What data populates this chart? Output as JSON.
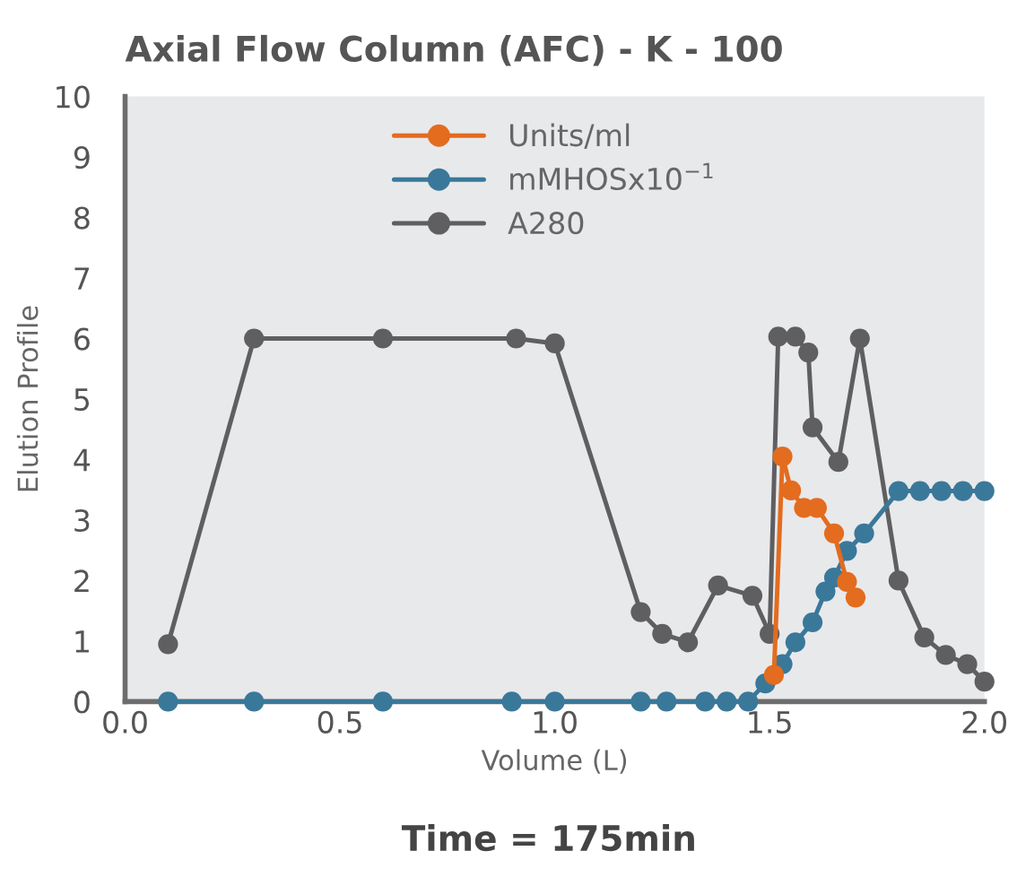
{
  "chart_data": {
    "type": "line",
    "title": "Axial Flow Column (AFC) - K - 100",
    "xlabel": "Volume (L)",
    "ylabel": "Elution Profile",
    "annotations": [
      "Time = 175min"
    ],
    "xlim": [
      0,
      2.0
    ],
    "xticks": [
      {
        "value": 0,
        "label": "0.0"
      },
      {
        "value": 0.5,
        "label": "0.5"
      },
      {
        "value": 1.0,
        "label": "1.0"
      },
      {
        "value": 1.5,
        "label": "1.5"
      },
      {
        "value": 2.0,
        "label": "2.0"
      }
    ],
    "ylim": [
      0,
      10
    ],
    "yticks": [
      0,
      1,
      2,
      3,
      4,
      5,
      6,
      7,
      8,
      9,
      10
    ],
    "grid": false,
    "legend": "top",
    "marker": "circle",
    "line_style": "solid",
    "series": [
      {
        "name": "Units/ml",
        "color": "#e36c1f",
        "x": [
          1.51,
          1.53,
          1.55,
          1.58,
          1.61,
          1.65,
          1.68,
          1.7
        ],
        "values": [
          0.44,
          4.05,
          3.49,
          3.2,
          3.2,
          2.78,
          1.98,
          1.72
        ]
      },
      {
        "name": "mMHOSx10$^{−1}$",
        "color": "#3a789a",
        "x": [
          0.1,
          0.3,
          0.6,
          0.9,
          1.0,
          1.2,
          1.26,
          1.35,
          1.4,
          1.45,
          1.49,
          1.53,
          1.56,
          1.6,
          1.63,
          1.65,
          1.68,
          1.72,
          1.8,
          1.85,
          1.9,
          1.95,
          2.0
        ],
        "values": [
          0,
          0,
          0,
          0,
          0,
          0,
          0,
          0,
          0,
          0,
          0.3,
          0.62,
          0.98,
          1.31,
          1.82,
          2.05,
          2.49,
          2.78,
          3.48,
          3.48,
          3.48,
          3.48,
          3.48
        ]
      },
      {
        "name": "A280",
        "color": "#5f5f61",
        "x": [
          0.1,
          0.3,
          0.6,
          0.91,
          1.0,
          1.2,
          1.25,
          1.31,
          1.38,
          1.46,
          1.5,
          1.52,
          1.56,
          1.59,
          1.6,
          1.66,
          1.71,
          1.8,
          1.86,
          1.91,
          1.96,
          2.0
        ],
        "values": [
          0.95,
          6.0,
          6.0,
          6.0,
          5.92,
          1.48,
          1.12,
          0.98,
          1.92,
          1.75,
          1.12,
          6.03,
          6.03,
          5.77,
          4.53,
          3.96,
          6.0,
          2.0,
          1.06,
          0.77,
          0.62,
          0.33
        ]
      }
    ]
  }
}
